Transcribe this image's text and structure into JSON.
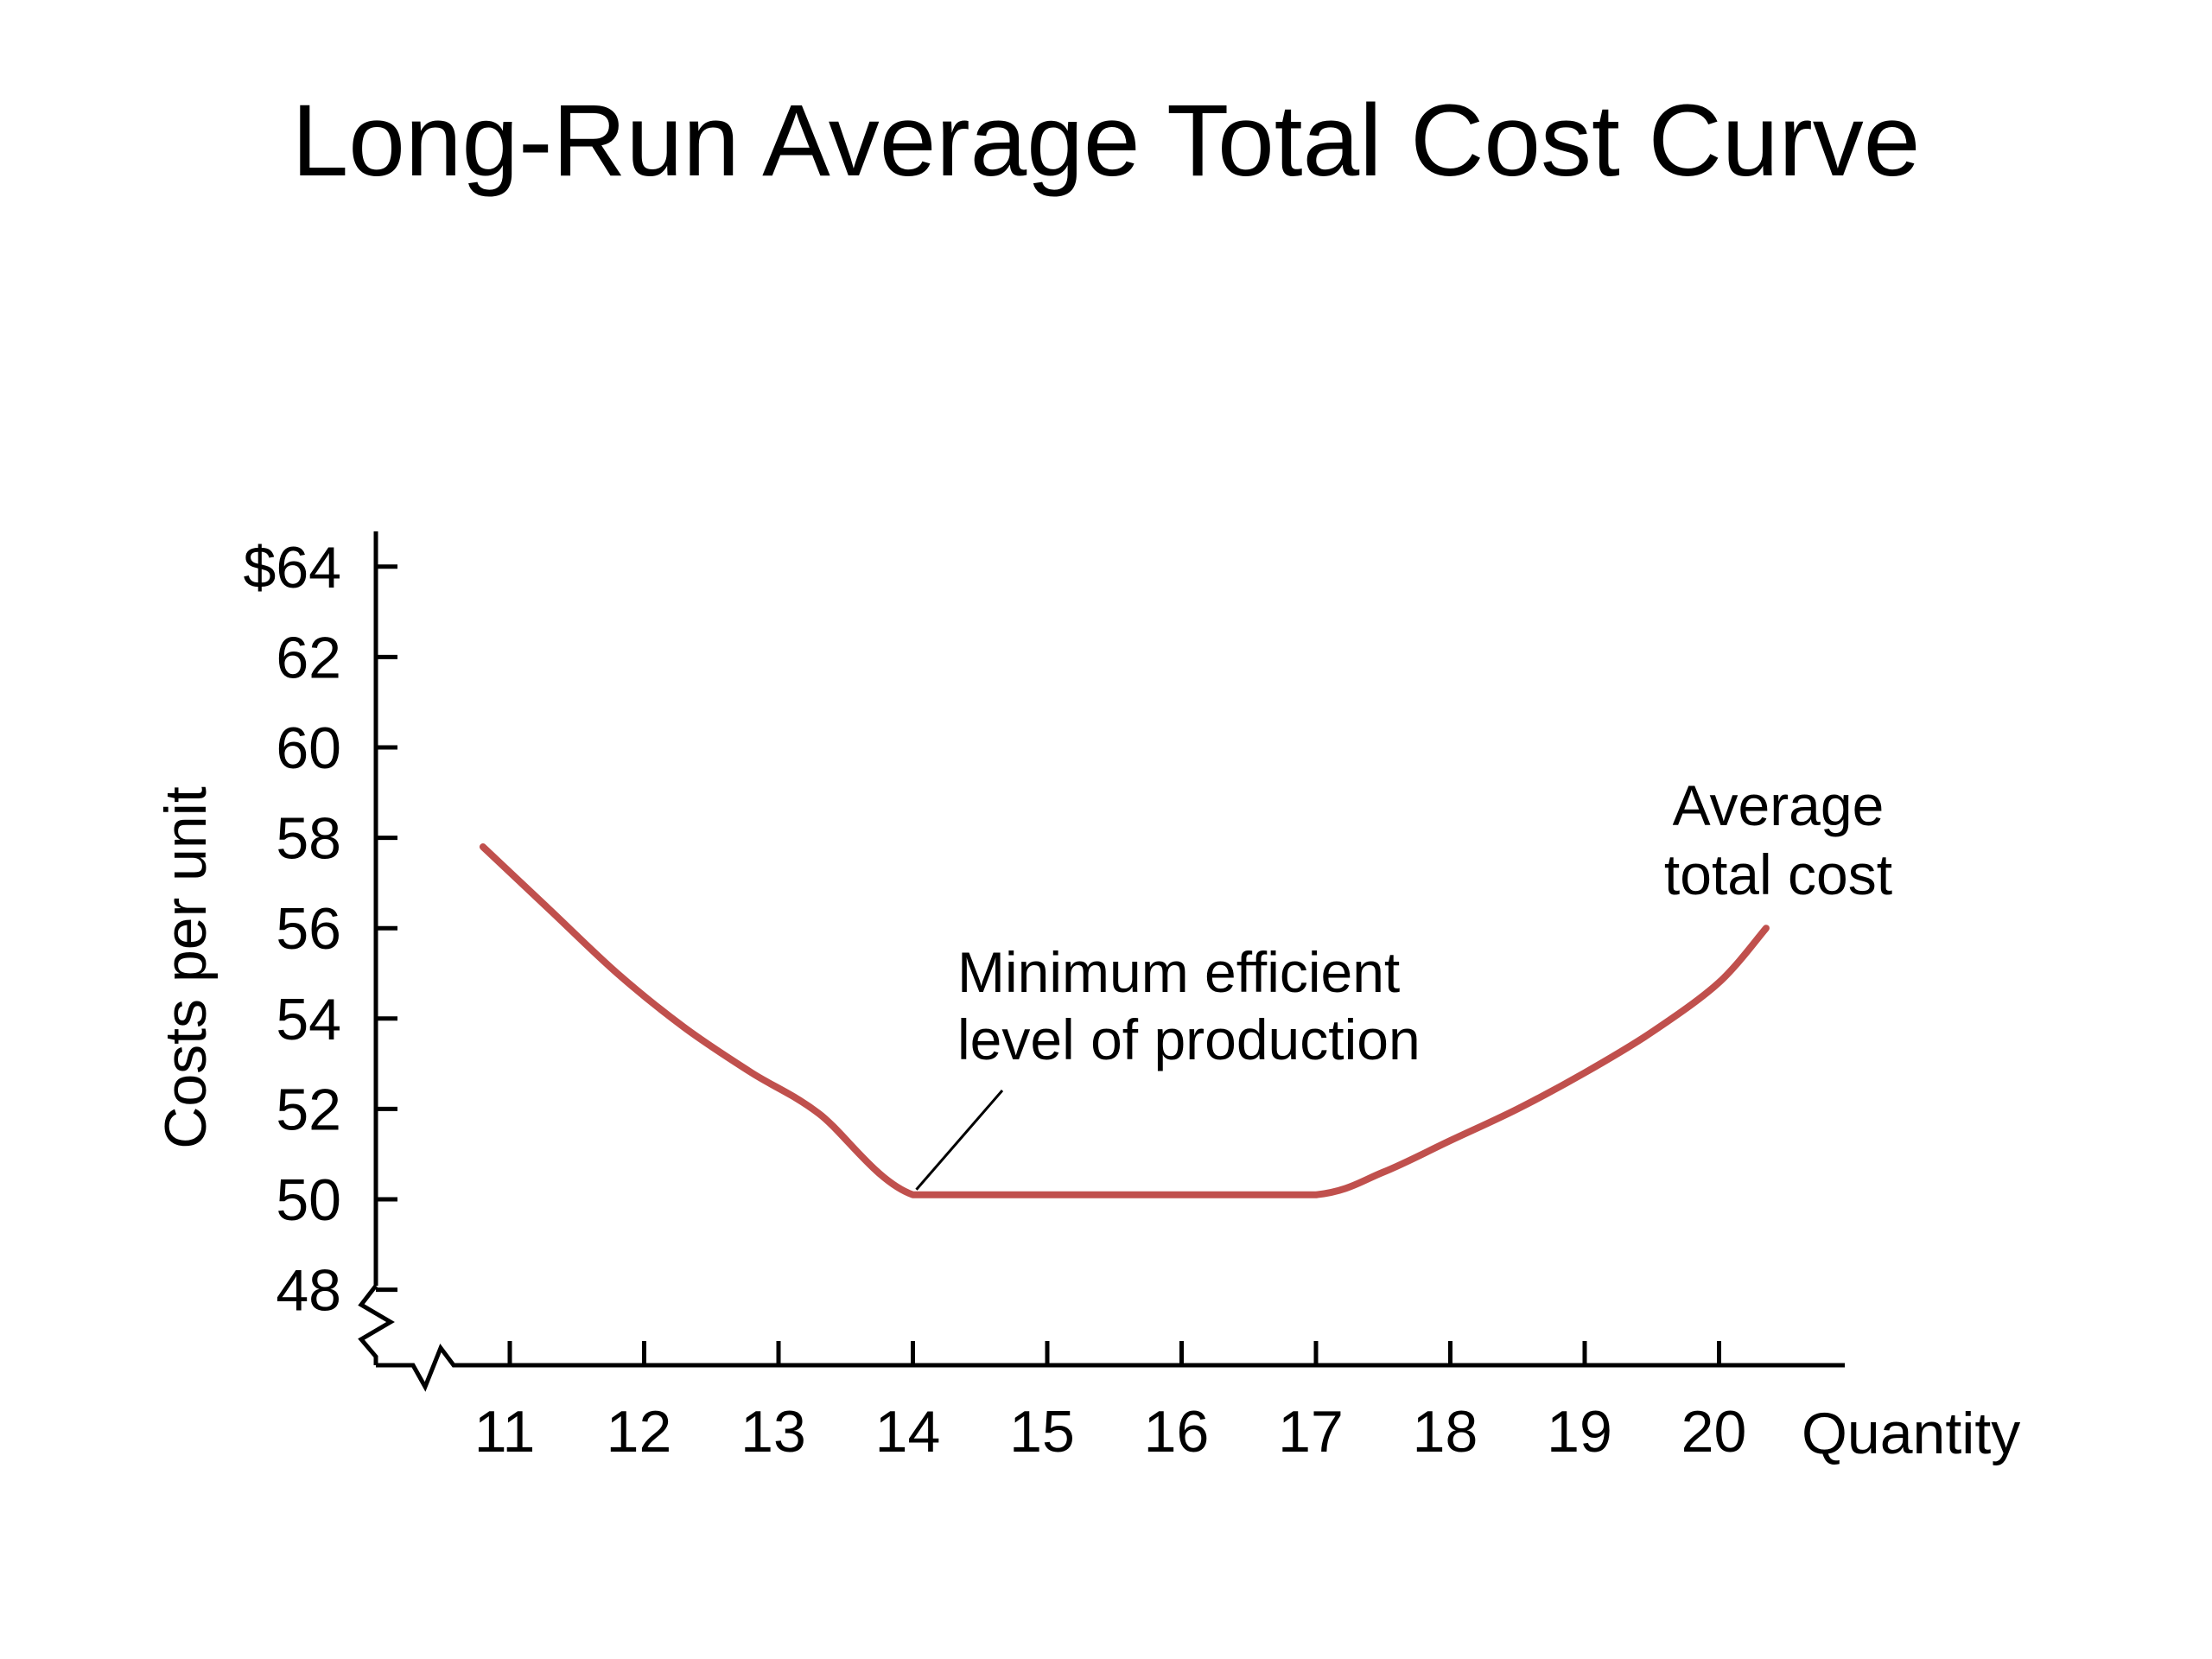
{
  "title": "Long-Run Average Total Cost Curve",
  "chart_data": {
    "type": "line",
    "title": "Long-Run Average Total Cost Curve",
    "xlabel": "Quantity",
    "ylabel": "Costs per unit",
    "x_ticks": [
      "11",
      "12",
      "13",
      "14",
      "15",
      "16",
      "17",
      "18",
      "19",
      "20"
    ],
    "y_ticks": [
      "$64",
      "62",
      "60",
      "58",
      "56",
      "54",
      "52",
      "50",
      "48"
    ],
    "y_tick_values": [
      64,
      62,
      60,
      58,
      56,
      54,
      52,
      50,
      48
    ],
    "xlim": [
      10.4,
      21.0
    ],
    "ylim": [
      47,
      65
    ],
    "axis_breaks": [
      "x",
      "y"
    ],
    "grid": false,
    "series": [
      {
        "name": "Average total cost",
        "color": "#c0504d",
        "x": [
          10.8,
          11.3,
          11.8,
          12.3,
          12.8,
          13.3,
          14.0,
          15.0,
          16.0,
          17.0,
          17.5,
          18.0,
          18.5,
          19.0,
          19.5,
          20.0,
          20.35
        ],
        "y": [
          57.8,
          56.4,
          55.0,
          53.8,
          52.8,
          51.9,
          50.1,
          50.1,
          50.1,
          50.1,
          50.6,
          51.3,
          52.0,
          52.8,
          53.7,
          54.8,
          56.0
        ]
      }
    ],
    "annotations": [
      {
        "text_lines": [
          "Minimum efficient",
          "level of production"
        ],
        "points_to": {
          "x": 14.0,
          "y": 50.1
        }
      },
      {
        "text_lines": [
          "Average",
          "total cost"
        ],
        "labels_series": "Average total cost"
      }
    ]
  }
}
